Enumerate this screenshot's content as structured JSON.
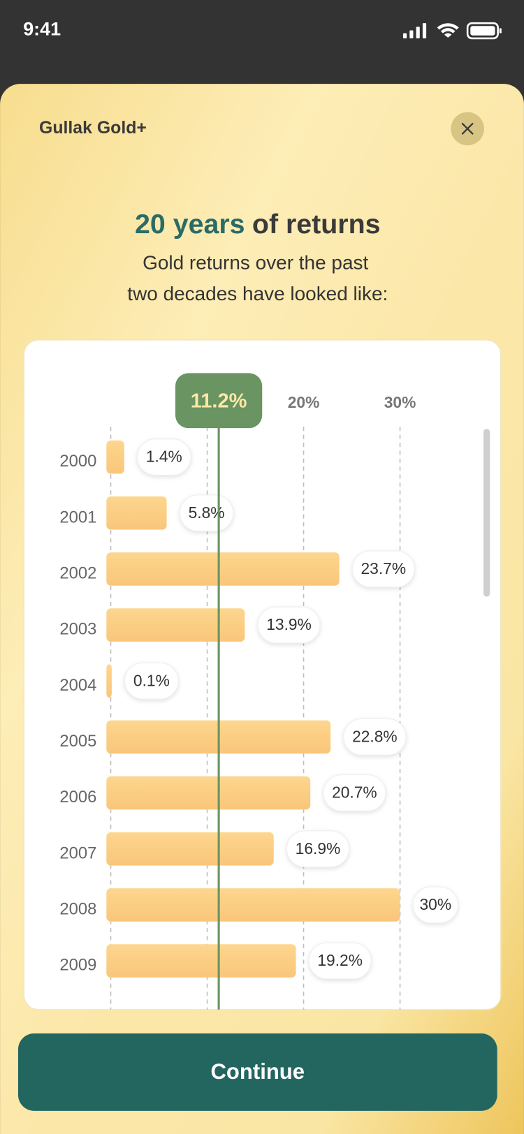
{
  "status_time": "9:41",
  "header_title": "Gullak Gold+",
  "heading_highlight": "20 years",
  "heading_rest": "of returns",
  "subtitle_lines": [
    "Gold returns over the past",
    "two decades have looked like:"
  ],
  "button_label": "Continue",
  "chart_data": {
    "type": "barh",
    "categories": [
      "2000",
      "2001",
      "2002",
      "2003",
      "2004",
      "2005",
      "2006",
      "2007",
      "2008",
      "2009"
    ],
    "values": [
      1.4,
      5.8,
      23.7,
      13.9,
      0.1,
      22.8,
      20.7,
      16.9,
      30,
      19.2
    ],
    "value_labels": [
      "1.4%",
      "5.8%",
      "23.7%",
      "13.9%",
      "0.1%",
      "22.8%",
      "20.7%",
      "16.9%",
      "30%",
      "19.2%"
    ],
    "color": "#fbcd84",
    "xlim": [
      0,
      40
    ],
    "xticks": [
      {
        "value": 20,
        "label": "20%"
      },
      {
        "value": 30,
        "label": "30%"
      }
    ],
    "xgrid": [
      0,
      10,
      20,
      30
    ],
    "average": 11.2,
    "average_label": "11.2%",
    "average_color": "#6a9462"
  }
}
